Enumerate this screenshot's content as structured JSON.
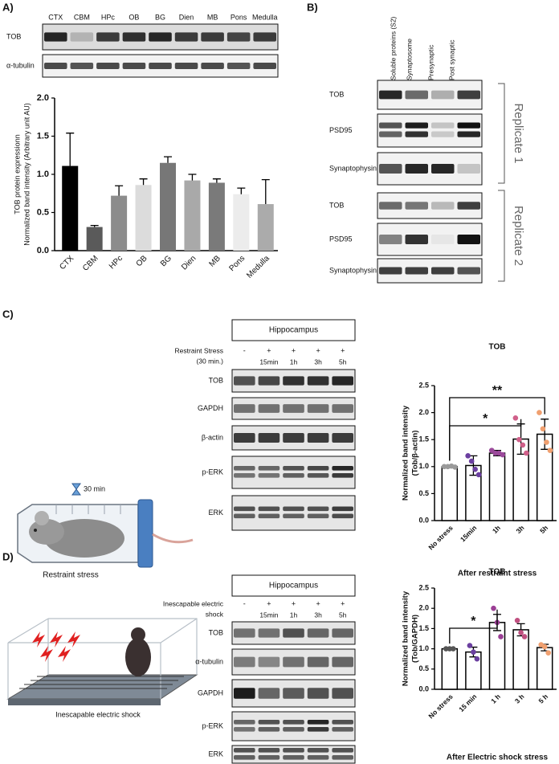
{
  "panel_labels": [
    "A)",
    "B)",
    "C)",
    "D)"
  ],
  "panel_a": {
    "lanes": [
      "CTX",
      "CBM",
      "HPc",
      "OB",
      "BG",
      "Dien",
      "MB",
      "Pons",
      "Medulla"
    ],
    "rows": [
      "TOB",
      "α-tubulin"
    ]
  },
  "panel_b": {
    "lanes": [
      "Soluble proteins (S2)",
      "Synaptosome",
      "Presynaptic",
      "Post synaptic"
    ],
    "replicates": [
      {
        "name": "Replicate 1",
        "rows": [
          "TOB",
          "PSD95",
          "Synaptophysin"
        ]
      },
      {
        "name": "Replicate 2",
        "rows": [
          "TOB",
          "PSD95",
          "Synaptophysin"
        ]
      }
    ]
  },
  "panel_c": {
    "region": "Hippocampus",
    "condition": [
      "Restraint Stress",
      "(30 min.)"
    ],
    "treatment": [
      "-",
      "+",
      "+",
      "+",
      "+"
    ],
    "times": [
      "15min",
      "1h",
      "3h",
      "5h"
    ],
    "rows": [
      "TOB",
      "GAPDH",
      "β-actin",
      "p-ERK",
      "ERK"
    ],
    "illustration": {
      "timer": "30 min",
      "caption": "Restraint stress"
    }
  },
  "panel_d": {
    "region": "Hippocampus",
    "condition": [
      "Inescapable electric",
      "shock"
    ],
    "treatment": [
      "-",
      "+",
      "+",
      "+",
      "+"
    ],
    "times": [
      "15min",
      "1h",
      "3h",
      "5h"
    ],
    "rows": [
      "TOB",
      "α-tubulin",
      "GAPDH",
      "p-ERK",
      "ERK"
    ],
    "illustration": {
      "caption": "Inescapable electric shock"
    }
  },
  "chart_data": [
    {
      "type": "bar",
      "y_label": [
        "TOB protein expressionn",
        "Normalized band intensity (Arbitrary unit AU)"
      ],
      "categories": [
        "CTX",
        "CBM",
        "HPc",
        "OB",
        "BG",
        "Dien",
        "MB",
        "Pons",
        "Medulla"
      ],
      "values": [
        1.11,
        0.31,
        0.72,
        0.86,
        1.15,
        0.92,
        0.89,
        0.74,
        0.61
      ],
      "errors": [
        0.43,
        0.02,
        0.13,
        0.08,
        0.08,
        0.08,
        0.05,
        0.08,
        0.32
      ],
      "error_bars": "up",
      "colors": [
        "#000000",
        "#5a5a5a",
        "#8c8c8c",
        "#dcdcdc",
        "#777777",
        "#a9a9a9",
        "#7a7a7a",
        "#ececec",
        "#ababab"
      ],
      "ylim": [
        0,
        2
      ],
      "yticks": [
        {
          "value": 0,
          "label": "0.0"
        },
        {
          "value": 0.5,
          "label": "0.5"
        },
        {
          "value": 1,
          "label": "1.0"
        },
        {
          "value": 1.5,
          "label": "1.5"
        },
        {
          "value": 2,
          "label": "2.0"
        }
      ]
    },
    {
      "type": "bar",
      "title": "TOB",
      "y_label": [
        "Normalized band intensity",
        "(Tob/β-actin)"
      ],
      "x_label": "After restraint stress",
      "categories": [
        "No stress",
        "15min",
        "1h",
        "3h",
        "5h"
      ],
      "values": [
        1.0,
        1.02,
        1.25,
        1.51,
        1.6
      ],
      "errors": [
        0.02,
        0.18,
        0.05,
        0.28,
        0.28
      ],
      "error_bars": "both",
      "color": "#ffffff",
      "edge_color": "#000000",
      "points": [
        [
          1.0,
          1.0,
          1.01,
          0.99
        ],
        [
          1.2,
          1.1,
          0.95,
          0.85
        ],
        [
          1.3,
          1.25,
          1.25,
          1.22
        ],
        [
          1.9,
          1.5,
          1.4,
          1.25
        ],
        [
          2.0,
          1.7,
          1.45,
          1.3
        ]
      ],
      "point_colors": [
        "#9a9a9a",
        "#6b3fa0",
        "#9b4a9b",
        "#d0608a",
        "#f0a070"
      ],
      "comparisons": [
        {
          "label": "*",
          "between": [
            "No stress",
            "3h"
          ]
        },
        {
          "label": "**",
          "between": [
            "No stress",
            "5h"
          ]
        }
      ],
      "ylim": [
        0,
        2.5
      ],
      "yticks": [
        {
          "value": 0,
          "label": "0.0"
        },
        {
          "value": 0.5,
          "label": "0.5"
        },
        {
          "value": 1,
          "label": "1.0"
        },
        {
          "value": 1.5,
          "label": "1.5"
        },
        {
          "value": 2,
          "label": "2.0"
        },
        {
          "value": 2.5,
          "label": "2.5"
        }
      ]
    },
    {
      "type": "bar",
      "title": "TOB",
      "y_label": [
        "Normalized band intensity",
        "(Tob/GAPDH)"
      ],
      "x_label": "After Electric shock stress",
      "categories": [
        "No stress",
        "15 min",
        "1 h",
        "3 h",
        "5 h"
      ],
      "values": [
        1.0,
        0.92,
        1.65,
        1.47,
        1.03
      ],
      "errors": [
        0.01,
        0.12,
        0.2,
        0.15,
        0.08
      ],
      "error_bars": "both",
      "color": "#ffffff",
      "edge_color": "#000000",
      "points": [
        [
          1.0,
          1.0,
          1.0
        ],
        [
          1.08,
          0.92,
          0.75
        ],
        [
          2.0,
          1.65,
          1.3
        ],
        [
          1.7,
          1.4,
          1.3
        ],
        [
          1.1,
          1.05,
          0.9
        ]
      ],
      "point_colors": [
        "#555555",
        "#6b3fa0",
        "#9b3f95",
        "#c05080",
        "#f0a070"
      ],
      "comparisons": [
        {
          "label": "*",
          "between": [
            "No stress",
            "1 h"
          ]
        }
      ],
      "ylim": [
        0,
        2.5
      ],
      "yticks": [
        {
          "value": 0,
          "label": "0.0"
        },
        {
          "value": 0.5,
          "label": "0.5"
        },
        {
          "value": 1,
          "label": "1.0"
        },
        {
          "value": 1.5,
          "label": "1.5"
        },
        {
          "value": 2,
          "label": "2.0"
        },
        {
          "value": 2.5,
          "label": "2.5"
        }
      ]
    }
  ]
}
